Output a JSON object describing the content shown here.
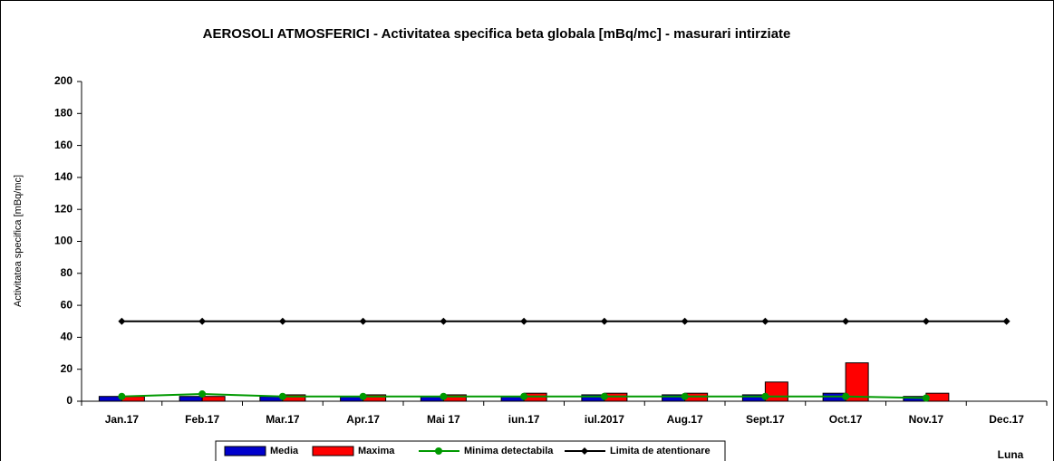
{
  "chart_data": {
    "type": "bar_line",
    "title": "AEROSOLI  ATMOSFERICI - Activitatea specifica beta globala [mBq/mc] - masurari intirziate",
    "ylabel": "Activitatea  specifica   [mBq/mc]",
    "xlabel": "Luna",
    "categories": [
      "Jan.17",
      "Feb.17",
      "Mar.17",
      "Apr.17",
      "Mai 17",
      "iun.17",
      "iul.2017",
      "Aug.17",
      "Sept.17",
      "Oct.17",
      "Nov.17",
      "Dec.17"
    ],
    "series": [
      {
        "name": "Media",
        "kind": "bar",
        "color": "#0000cc",
        "values": [
          3,
          3,
          3,
          3,
          3,
          3,
          4,
          4,
          4,
          5,
          3,
          null
        ]
      },
      {
        "name": "Maxima",
        "kind": "bar",
        "color": "#ff0000",
        "values": [
          3,
          3,
          4,
          4,
          4,
          5,
          5,
          5,
          12,
          24,
          5,
          null
        ]
      },
      {
        "name": "Minima detectabila",
        "kind": "line",
        "color": "#009900",
        "values": [
          3,
          4.5,
          3,
          3,
          3,
          3,
          3,
          3,
          3,
          3,
          2,
          null
        ]
      },
      {
        "name": "Limita de atentionare",
        "kind": "line",
        "color": "#000000",
        "values": [
          50,
          50,
          50,
          50,
          50,
          50,
          50,
          50,
          50,
          50,
          50,
          50
        ]
      }
    ],
    "ylim": [
      0,
      200
    ],
    "yticks": [
      0,
      20,
      40,
      60,
      80,
      100,
      120,
      140,
      160,
      180,
      200
    ],
    "grid": false
  }
}
